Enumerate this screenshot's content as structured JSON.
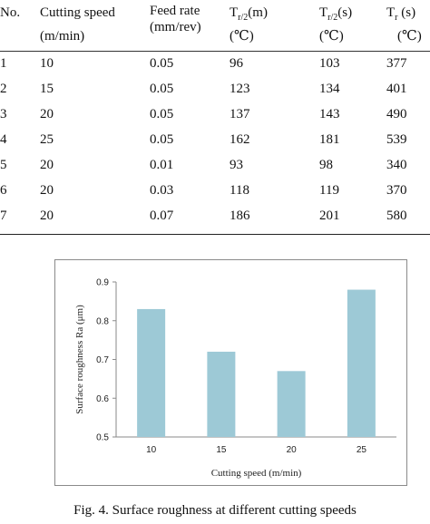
{
  "table": {
    "headers": {
      "no": "No.",
      "cutting_speed": "Cutting speed",
      "cutting_speed_unit": "(m/min)",
      "feed_rate": "Feed rate",
      "feed_rate_unit": "(mm/rev)",
      "tr2m_T": "T",
      "tr2m_sub": "r/2",
      "tr2m_tail": "(m)",
      "tr2s_T": "T",
      "tr2s_sub": "r/2",
      "tr2s_tail": "(s)",
      "tr_T": "T",
      "tr_sub": "r",
      "tr_tail": " (s)",
      "unit_c": "(℃)"
    },
    "rows": [
      [
        "1",
        "10",
        "0.05",
        "96",
        "103",
        "377"
      ],
      [
        "2",
        "15",
        "0.05",
        "123",
        "134",
        "401"
      ],
      [
        "3",
        "20",
        "0.05",
        "137",
        "143",
        "490"
      ],
      [
        "4",
        "25",
        "0.05",
        "162",
        "181",
        "539"
      ],
      [
        "5",
        "20",
        "0.01",
        "93",
        "98",
        "340"
      ],
      [
        "6",
        "20",
        "0.03",
        "118",
        "119",
        "370"
      ],
      [
        "7",
        "20",
        "0.07",
        "186",
        "201",
        "580"
      ]
    ]
  },
  "chart_data": {
    "type": "bar",
    "categories": [
      "10",
      "15",
      "20",
      "25"
    ],
    "values": [
      0.83,
      0.72,
      0.67,
      0.88
    ],
    "xlabel": "Cutting  speed (m/min)",
    "ylabel": "Surface  roughness  Ra  (μm)",
    "ylim": [
      0.5,
      0.9
    ],
    "yticks": [
      "0.5",
      "0.6",
      "0.7",
      "0.8",
      "0.9"
    ],
    "grid": false,
    "bar_color": "#9dc9d6"
  },
  "caption": "Fig. 4. Surface roughness at different cutting speeds"
}
